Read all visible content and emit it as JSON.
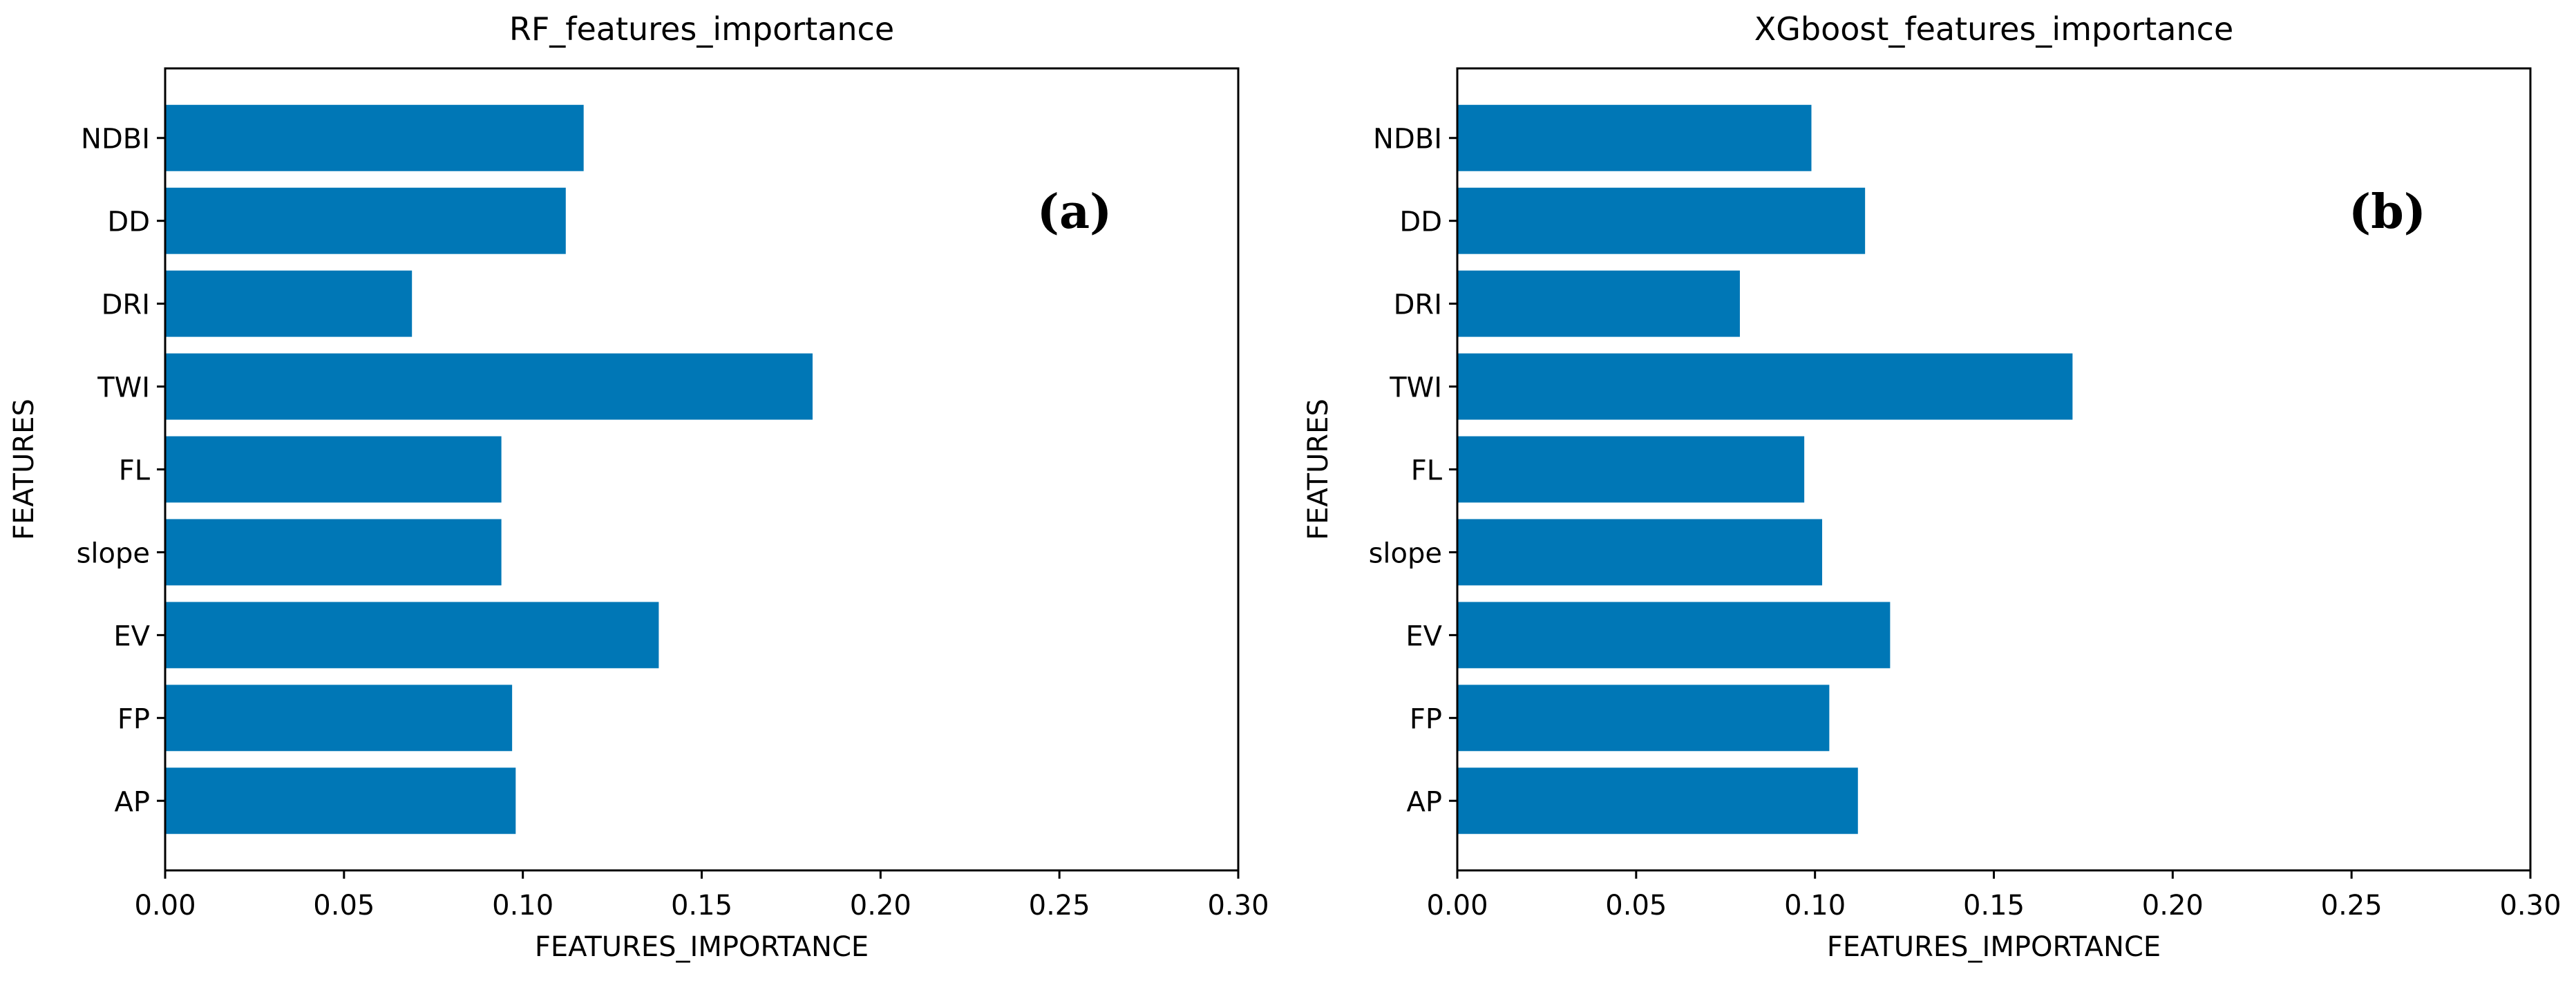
{
  "chart_data": [
    {
      "type": "bar",
      "orientation": "horizontal",
      "title": "RF_features_importance",
      "panel_label": "(a)",
      "xlabel": "FEATURES_IMPORTANCE",
      "ylabel": "FEATURES",
      "categories": [
        "AP",
        "FP",
        "EV",
        "slope",
        "FL",
        "TWI",
        "DRI",
        "DD",
        "NDBI"
      ],
      "values": [
        0.098,
        0.097,
        0.138,
        0.094,
        0.094,
        0.181,
        0.069,
        0.112,
        0.117
      ],
      "xlim": [
        0,
        0.3
      ],
      "xticks": [
        "0.00",
        "0.05",
        "0.10",
        "0.15",
        "0.20",
        "0.25",
        "0.30"
      ],
      "grid": false,
      "color": "#0077b6"
    },
    {
      "type": "bar",
      "orientation": "horizontal",
      "title": "XGboost_features_importance",
      "panel_label": "(b)",
      "xlabel": "FEATURES_IMPORTANCE",
      "ylabel": "FEATURES",
      "categories": [
        "AP",
        "FP",
        "EV",
        "slope",
        "FL",
        "TWI",
        "DRI",
        "DD",
        "NDBI"
      ],
      "values": [
        0.112,
        0.104,
        0.121,
        0.102,
        0.097,
        0.172,
        0.079,
        0.114,
        0.099
      ],
      "xlim": [
        0,
        0.3
      ],
      "xticks": [
        "0.00",
        "0.05",
        "0.10",
        "0.15",
        "0.20",
        "0.25",
        "0.30"
      ],
      "grid": false,
      "color": "#0077b6"
    }
  ]
}
